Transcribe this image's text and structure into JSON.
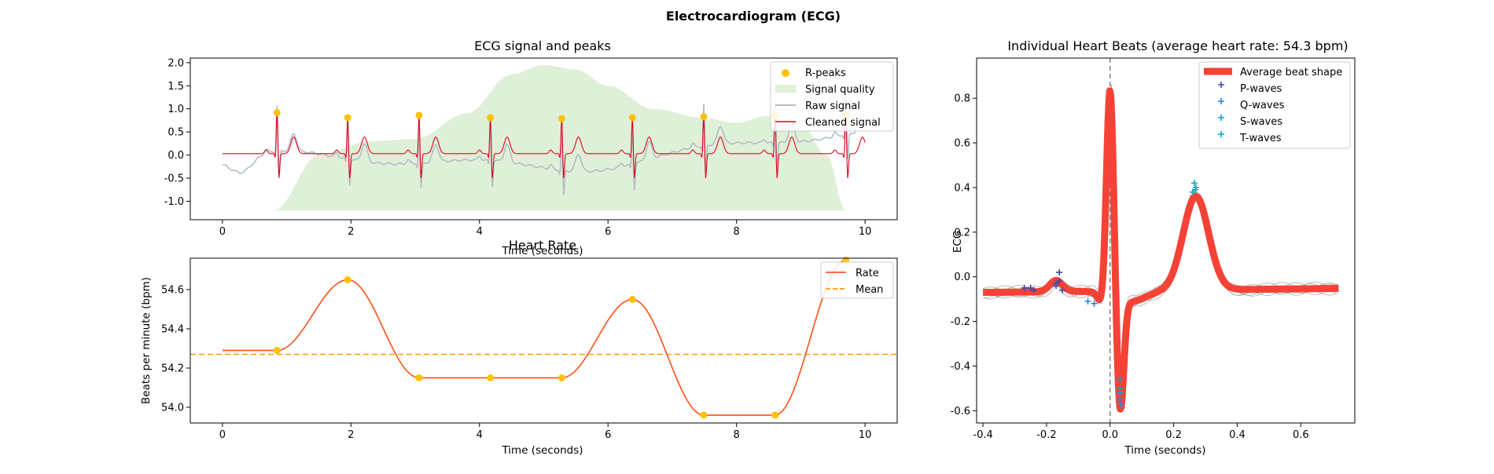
{
  "figure": {
    "title": "Electrocardiogram (ECG)"
  },
  "colors": {
    "rpeak": "#FFC107",
    "quality": "#DFF0D8",
    "raw": "#B0BEC5",
    "clean": "#E3001B",
    "rate": "#FF5722",
    "mean": "#FF9800",
    "avgbeat": "#F44336",
    "pwave": "#3949AB",
    "qwave": "#1E88E5",
    "swave": "#039BE5",
    "twave": "#00ACC1",
    "beat": "#AAAAAA"
  },
  "chart_data": [
    {
      "id": "signal",
      "type": "line",
      "title": "ECG signal and peaks",
      "xlabel": "Time (seconds)",
      "ylabel": "",
      "xlim": [
        -0.5,
        10.5
      ],
      "ylim": [
        -1.4,
        2.1
      ],
      "xticks": [
        "0",
        "2",
        "4",
        "6",
        "8",
        "10"
      ],
      "yticks": [
        "-1.0",
        "-0.5",
        "0.0",
        "0.5",
        "1.0",
        "1.5",
        "2.0"
      ],
      "legend_position": "upper-right",
      "legend": [
        "R-peaks",
        "Signal quality",
        "Raw signal",
        "Cleaned signal"
      ],
      "r_peaks": {
        "x": [
          0.85,
          1.95,
          3.06,
          4.17,
          5.28,
          6.38,
          7.49,
          8.6,
          9.7
        ],
        "y": [
          0.92,
          0.81,
          0.86,
          0.81,
          0.79,
          0.81,
          0.83,
          0.85,
          0.85
        ]
      },
      "quality": {
        "x": [
          0.8,
          1.5,
          2.3,
          3.0,
          3.8,
          4.5,
          5.0,
          5.5,
          6.0,
          6.7,
          7.5,
          8.0,
          8.5,
          9.0,
          9.4,
          9.7
        ],
        "y": [
          -1.2,
          0.0,
          0.3,
          0.35,
          0.9,
          1.75,
          1.95,
          1.85,
          1.5,
          1.0,
          0.8,
          0.7,
          0.85,
          0.7,
          0.0,
          -1.2
        ],
        "base": -1.2
      }
    },
    {
      "id": "rate",
      "type": "line",
      "title": "Heart Rate",
      "xlabel": "Time (seconds)",
      "ylabel": "Beats per minute (bpm)",
      "xlim": [
        -0.5,
        10.5
      ],
      "ylim": [
        53.92,
        54.76
      ],
      "xticks": [
        "0",
        "2",
        "4",
        "6",
        "8",
        "10"
      ],
      "yticks": [
        "54.0",
        "54.2",
        "54.4",
        "54.6"
      ],
      "legend_position": "upper-right",
      "legend": [
        "Rate",
        "Mean"
      ],
      "mean": 54.27,
      "points": {
        "x": [
          0.85,
          1.95,
          3.06,
          4.17,
          5.28,
          6.38,
          7.49,
          8.6,
          9.7
        ],
        "y": [
          54.29,
          54.65,
          54.15,
          54.15,
          54.15,
          54.55,
          53.96,
          53.96,
          54.75
        ]
      },
      "start": {
        "x": 0,
        "y": 54.29
      }
    },
    {
      "id": "beats",
      "type": "line",
      "title": "Individual Heart Beats (average heart rate: 54.3 bpm)",
      "xlabel": "Time (seconds)",
      "ylabel": "ECG",
      "xlim": [
        -0.42,
        0.77
      ],
      "ylim": [
        -0.655,
        0.98
      ],
      "xticks": [
        "-0.4",
        "-0.2",
        "0.0",
        "0.2",
        "0.4",
        "0.6"
      ],
      "yticks": [
        "-0.6",
        "-0.4",
        "-0.2",
        "0.0",
        "0.2",
        "0.4",
        "0.6",
        "0.8"
      ],
      "legend_position": "upper-right",
      "legend": [
        "Average beat shape",
        "P-waves",
        "Q-waves",
        "S-waves",
        "T-waves"
      ],
      "p_waves": {
        "x": [
          -0.27,
          -0.25,
          -0.24,
          -0.17,
          -0.16,
          -0.15,
          -0.16,
          -0.17
        ],
        "y": [
          -0.05,
          -0.05,
          -0.06,
          -0.04,
          -0.02,
          -0.06,
          0.02,
          -0.03
        ]
      },
      "q_waves": {
        "x": [
          -0.07,
          -0.05
        ],
        "y": [
          -0.11,
          -0.12
        ]
      },
      "s_waves": {
        "x": [
          0.03,
          0.03,
          0.03,
          0.035,
          0.03
        ],
        "y": [
          -0.46,
          -0.52,
          -0.55,
          -0.57,
          -0.5
        ]
      },
      "t_waves": {
        "x": [
          0.265,
          0.27,
          0.26,
          0.268
        ],
        "y": [
          0.42,
          0.4,
          0.38,
          0.39
        ]
      }
    }
  ]
}
